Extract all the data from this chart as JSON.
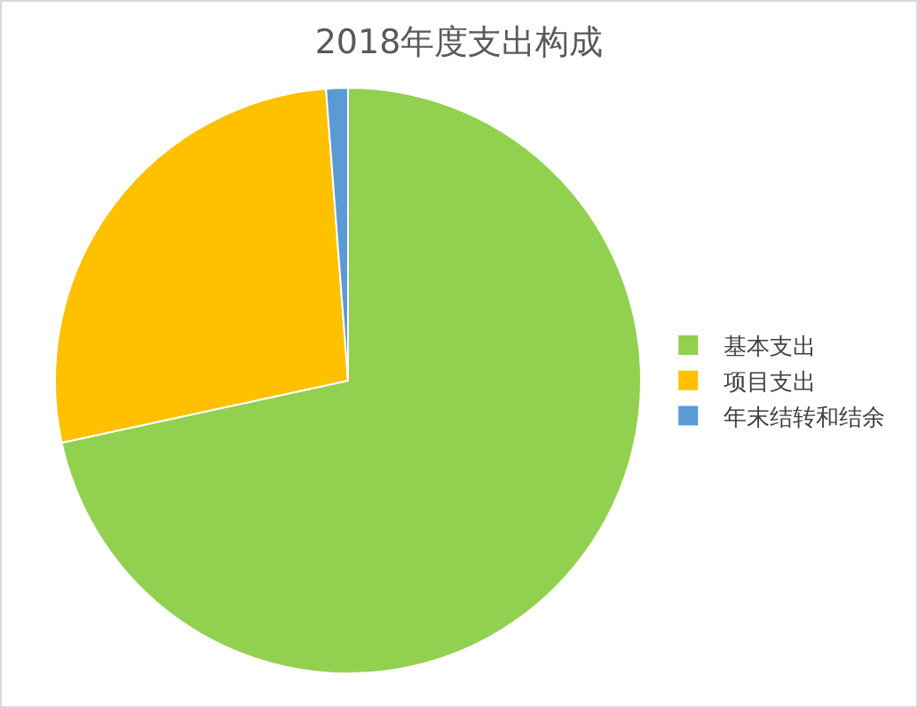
{
  "chart_data": {
    "type": "pie",
    "title": "2018年度支出构成",
    "categories": [
      "基本支出",
      "项目支出",
      "年末结转和结余"
    ],
    "values": [
      71.6,
      27.2,
      1.2
    ],
    "colors": [
      "#92d050",
      "#ffc000",
      "#5b9bd5"
    ],
    "legend": "right"
  }
}
